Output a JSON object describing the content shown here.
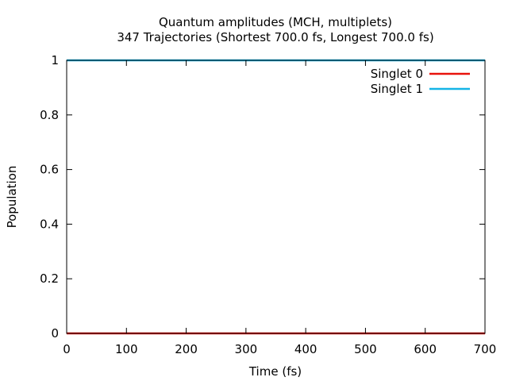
{
  "chart_data": {
    "type": "line",
    "title": "Quantum amplitudes (MCH, multiplets)",
    "subtitle": "347 Trajectories (Shortest 700.0 fs, Longest 700.0 fs)",
    "xlabel": "Time (fs)",
    "ylabel": "Population",
    "xlim": [
      0,
      700
    ],
    "ylim": [
      0,
      1
    ],
    "xticks": [
      0,
      100,
      200,
      300,
      400,
      500,
      600,
      700
    ],
    "yticks": [
      0,
      0.2,
      0.4,
      0.6,
      0.8,
      1
    ],
    "ytick_labels": [
      "0",
      "0.2",
      "0.4",
      "0.6",
      "0.8",
      "1"
    ],
    "grid": false,
    "legend_position": "top-right",
    "series": [
      {
        "name": "Singlet 0",
        "color": "#e8120c",
        "x": [
          0,
          700
        ],
        "y": [
          0,
          0
        ]
      },
      {
        "name": "Singlet 1",
        "color": "#14b4e6",
        "x": [
          0,
          700
        ],
        "y": [
          1,
          1
        ]
      }
    ]
  }
}
